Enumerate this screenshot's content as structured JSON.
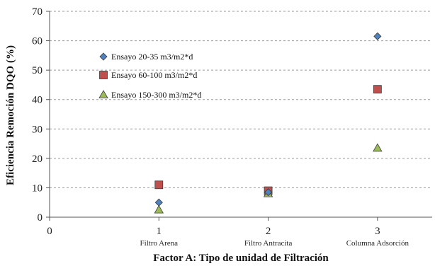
{
  "chart_data": {
    "type": "scatter",
    "xlabel": "Factor A: Tipo de unidad de Filtración",
    "ylabel": "Eficiencia Remoción DQO (%)",
    "xlim": [
      0,
      3.5
    ],
    "ylim": [
      0,
      70
    ],
    "x_ticks": [
      "0",
      "1",
      "2",
      "3"
    ],
    "y_ticks": [
      "0",
      "10",
      "20",
      "30",
      "40",
      "50",
      "60",
      "70"
    ],
    "categories": [
      "Filtro  Arena",
      "Filtro  Antracita",
      "Columna  Adsorción"
    ],
    "grid": "horizontal-dashed",
    "legend_position": "upper-left",
    "series": [
      {
        "name": "Ensayo 20-35 m3/m2*d",
        "marker": "diamond",
        "color": "#4f81bd",
        "x": [
          1,
          2,
          3
        ],
        "values": [
          5,
          8.5,
          61.5
        ]
      },
      {
        "name": "Ensayo 60-100 m3/m2*d",
        "marker": "square",
        "color": "#c0504d",
        "x": [
          1,
          2,
          3
        ],
        "values": [
          11,
          9,
          43.5
        ]
      },
      {
        "name": "Ensayo 150-300 m3/m2*d",
        "marker": "triangle",
        "color": "#9bbb59",
        "x": [
          1,
          2,
          3
        ],
        "values": [
          2.5,
          8,
          23.5
        ]
      }
    ]
  }
}
